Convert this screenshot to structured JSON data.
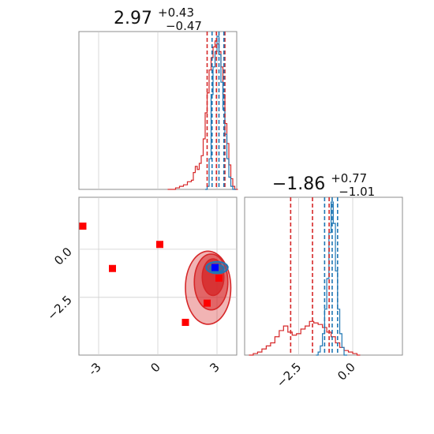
{
  "chart_data": [
    {
      "type": "histogram",
      "panel": "top-left",
      "title_main": "2.97",
      "title_plus": "+0.43",
      "title_minus": "−0.47",
      "xlim": [
        -4,
        4
      ],
      "x_ticks": [
        -3,
        0,
        3
      ],
      "grid": true,
      "series": [
        {
          "color": "#d62728",
          "bins": [
            [
              0.5,
              0.0
            ],
            [
              0.9,
              0.01
            ],
            [
              1.1,
              0.02
            ],
            [
              1.3,
              0.03
            ],
            [
              1.5,
              0.05
            ],
            [
              1.7,
              0.06
            ],
            [
              1.8,
              0.11
            ],
            [
              1.9,
              0.15
            ],
            [
              2.0,
              0.13
            ],
            [
              2.1,
              0.17
            ],
            [
              2.2,
              0.22
            ],
            [
              2.3,
              0.33
            ],
            [
              2.4,
              0.5
            ],
            [
              2.5,
              0.63
            ],
            [
              2.6,
              0.78
            ],
            [
              2.7,
              0.86
            ],
            [
              2.8,
              0.93
            ],
            [
              2.9,
              0.97
            ],
            [
              3.0,
              0.95
            ],
            [
              3.1,
              0.9
            ],
            [
              3.2,
              0.8
            ],
            [
              3.3,
              0.62
            ],
            [
              3.4,
              0.43
            ],
            [
              3.5,
              0.3
            ],
            [
              3.6,
              0.16
            ],
            [
              3.7,
              0.07
            ],
            [
              3.8,
              0.02
            ],
            [
              3.9,
              0.0
            ]
          ],
          "quantiles": [
            2.5,
            2.97,
            3.4
          ]
        },
        {
          "color": "#1f77b4",
          "bins": [
            [
              2.4,
              0.0
            ],
            [
              2.5,
              0.02
            ],
            [
              2.6,
              0.2
            ],
            [
              2.7,
              0.62
            ],
            [
              2.8,
              0.8
            ],
            [
              2.9,
              0.9
            ],
            [
              3.0,
              1.0
            ],
            [
              3.1,
              0.88
            ],
            [
              3.2,
              0.7
            ],
            [
              3.3,
              0.52
            ],
            [
              3.4,
              0.36
            ],
            [
              3.5,
              0.2
            ],
            [
              3.6,
              0.08
            ],
            [
              3.7,
              0.02
            ],
            [
              3.8,
              0.0
            ]
          ],
          "quantiles": [
            2.75,
            3.1,
            3.35
          ]
        }
      ]
    },
    {
      "type": "scatter",
      "panel": "bottom-left",
      "xlim": [
        -4,
        4
      ],
      "ylim": [
        -5.5,
        2.7
      ],
      "x_ticks": [
        -3,
        0,
        3
      ],
      "y_ticks": [
        0.0,
        -2.5
      ],
      "y_tick_labels": [
        "0.0",
        "−2.5"
      ],
      "grid": true,
      "markers": [
        {
          "x": -3.8,
          "y": 1.2,
          "color": "#ff0000"
        },
        {
          "x": -2.3,
          "y": -1.0,
          "color": "#ff0000"
        },
        {
          "x": 0.1,
          "y": 0.25,
          "color": "#ff0000"
        },
        {
          "x": 3.1,
          "y": -1.5,
          "color": "#ff0000"
        },
        {
          "x": 2.5,
          "y": -2.8,
          "color": "#ff0000"
        },
        {
          "x": 1.4,
          "y": -3.8,
          "color": "#ff0000"
        },
        {
          "x": 2.9,
          "y": -0.95,
          "color": "#0000ff"
        }
      ],
      "contours_red": [
        {
          "cx": 2.55,
          "cy": -2.0,
          "rx": 1.15,
          "ry": 1.9,
          "opacity": 0.35
        },
        {
          "cx": 2.7,
          "cy": -1.7,
          "rx": 0.85,
          "ry": 1.45,
          "opacity": 0.55
        },
        {
          "cx": 2.8,
          "cy": -1.45,
          "rx": 0.55,
          "ry": 0.95,
          "opacity": 0.8
        }
      ],
      "contours_blue": [
        {
          "cx": 3.0,
          "cy": -0.95,
          "rx": 0.55,
          "ry": 0.3
        },
        {
          "cx": 3.0,
          "cy": -1.0,
          "rx": 0.35,
          "ry": 0.18
        }
      ]
    },
    {
      "type": "histogram",
      "panel": "bottom-right",
      "title_main": "−1.86",
      "title_plus": "+0.77",
      "title_minus": "−1.01",
      "xlim": [
        -5.0,
        2.3
      ],
      "x_ticks": [
        -2.5,
        0.0
      ],
      "x_tick_labels": [
        "−2.5",
        "0.0"
      ],
      "grid": true,
      "series": [
        {
          "color": "#d62728",
          "bins": [
            [
              -4.8,
              0.0
            ],
            [
              -4.6,
              0.01
            ],
            [
              -4.4,
              0.02
            ],
            [
              -4.2,
              0.04
            ],
            [
              -4.0,
              0.06
            ],
            [
              -3.8,
              0.08
            ],
            [
              -3.6,
              0.12
            ],
            [
              -3.4,
              0.16
            ],
            [
              -3.2,
              0.19
            ],
            [
              -3.0,
              0.15
            ],
            [
              -2.8,
              0.13
            ],
            [
              -2.6,
              0.14
            ],
            [
              -2.4,
              0.17
            ],
            [
              -2.2,
              0.19
            ],
            [
              -2.0,
              0.22
            ],
            [
              -1.8,
              0.21
            ],
            [
              -1.6,
              0.2
            ],
            [
              -1.4,
              0.18
            ],
            [
              -1.2,
              0.15
            ],
            [
              -1.0,
              0.12
            ],
            [
              -0.8,
              0.08
            ],
            [
              -0.6,
              0.05
            ],
            [
              -0.4,
              0.03
            ],
            [
              -0.2,
              0.02
            ],
            [
              0.0,
              0.01
            ],
            [
              0.2,
              0.0
            ]
          ],
          "quantiles": [
            -2.87,
            -1.86,
            -1.09
          ]
        },
        {
          "color": "#1f77b4",
          "bins": [
            [
              -1.7,
              0.0
            ],
            [
              -1.6,
              0.02
            ],
            [
              -1.5,
              0.06
            ],
            [
              -1.4,
              0.14
            ],
            [
              -1.3,
              0.3
            ],
            [
              -1.2,
              0.5
            ],
            [
              -1.1,
              0.8
            ],
            [
              -1.0,
              1.0
            ],
            [
              -0.9,
              0.86
            ],
            [
              -0.8,
              0.55
            ],
            [
              -0.7,
              0.3
            ],
            [
              -0.6,
              0.14
            ],
            [
              -0.5,
              0.05
            ],
            [
              -0.4,
              0.0
            ]
          ],
          "quantiles": [
            -1.3,
            -0.95,
            -0.7
          ]
        }
      ]
    }
  ]
}
